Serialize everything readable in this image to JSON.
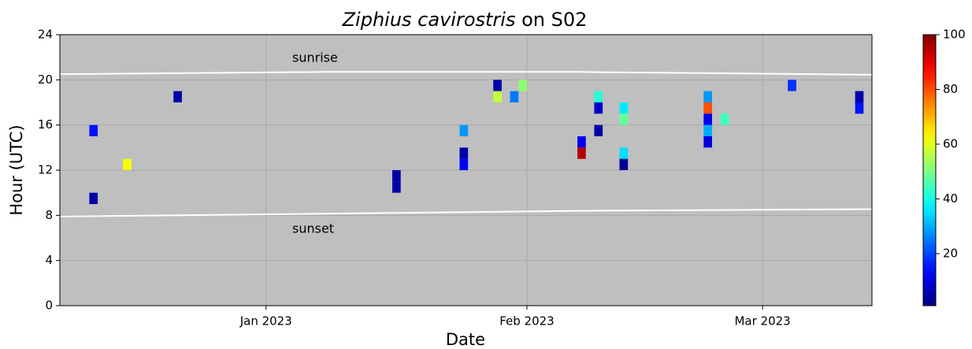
{
  "chart_data": {
    "type": "heatmap",
    "title": {
      "species": "Ziphius cavirostris",
      "suffix": "on S02"
    },
    "x_label": "Date",
    "y_label": "Hour (UTC)",
    "x": [
      19337,
      19337,
      19341,
      19347,
      19373,
      19373,
      19381,
      19381,
      19381,
      19385,
      19385,
      19387,
      19388,
      19395,
      19395,
      19397,
      19397,
      19397,
      19400,
      19400,
      19400,
      19400,
      19410,
      19410,
      19410,
      19410,
      19410,
      19412,
      19420,
      19428,
      19428
    ],
    "y": [
      15,
      9,
      12,
      18,
      11,
      10,
      15,
      13,
      12,
      19,
      18,
      18,
      19,
      14,
      13,
      18,
      17,
      15,
      17,
      16,
      13,
      12,
      18,
      17,
      16,
      15,
      14,
      16,
      19,
      18,
      17
    ],
    "values": [
      15,
      5,
      62,
      5,
      5,
      5,
      28,
      5,
      12,
      5,
      57,
      25,
      52,
      12,
      95,
      42,
      8,
      5,
      36,
      48,
      35,
      3,
      28,
      80,
      12,
      30,
      10,
      44,
      18,
      5,
      15
    ],
    "colormap": "jet",
    "clim": [
      1,
      100
    ],
    "cticks": [
      20,
      40,
      60,
      80,
      100
    ],
    "lines": [
      {
        "name": "sunrise",
        "color": "#ffffff",
        "x": [
          19333.5,
          19365,
          19395,
          19430
        ],
        "values": [
          20.5,
          20.7,
          20.7,
          20.45
        ]
      },
      {
        "name": "sunset",
        "color": "#ffffff",
        "x": [
          19333.5,
          19360,
          19395,
          19430
        ],
        "values": [
          7.9,
          8.1,
          8.4,
          8.55
        ]
      }
    ],
    "xlim": [
      19333.5,
      19430
    ],
    "ylim": [
      0,
      24
    ],
    "xticks": [
      {
        "value": 19358,
        "label": "Jan 2023"
      },
      {
        "value": 19389,
        "label": "Feb 2023"
      },
      {
        "value": 19417,
        "label": "Mar 2023"
      }
    ],
    "yticks": [
      0,
      4,
      8,
      12,
      16,
      20,
      24
    ],
    "grid": true,
    "background": "#bfbfbf"
  }
}
